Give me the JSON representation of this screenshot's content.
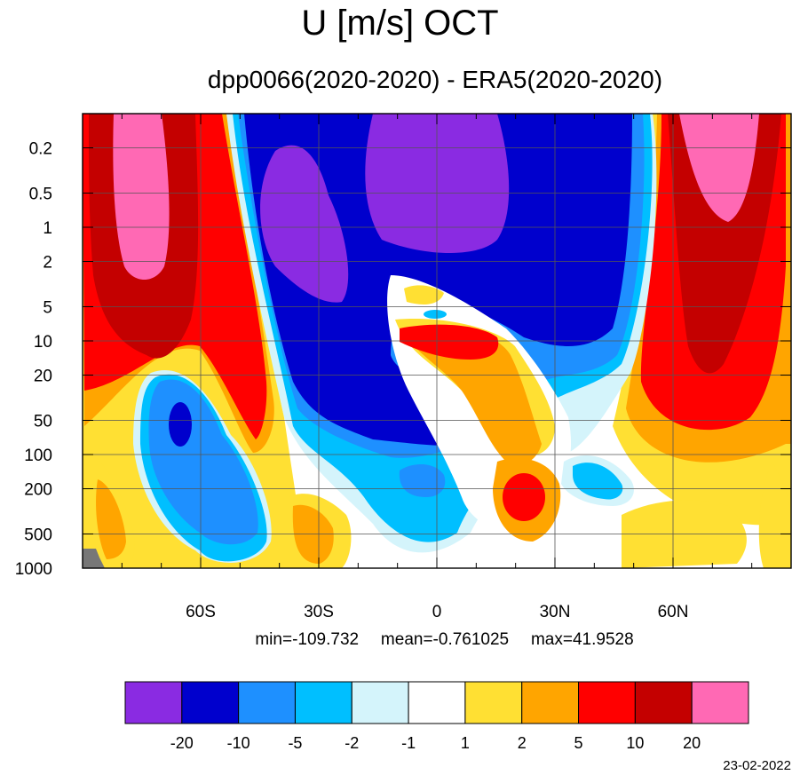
{
  "title": "U [m/s] OCT",
  "subtitle": "dpp0066(2020-2020) - ERA5(2020-2020)",
  "stats": {
    "min": "min=-109.732",
    "mean": "mean=-0.761025",
    "max": "max=41.9528"
  },
  "date": "23-02-2022",
  "chart_data": {
    "type": "heatmap",
    "title": "U [m/s] OCT",
    "subtitle": "dpp0066(2020-2020) - ERA5(2020-2020)",
    "x_axis": {
      "ticks": [
        -60,
        -30,
        0,
        30,
        60
      ],
      "tick_labels": [
        "60S",
        "30S",
        "0",
        "30N",
        "60N"
      ],
      "range": [
        -90,
        90
      ]
    },
    "y_axis": {
      "scale": "log",
      "ticks": [
        0.2,
        0.5,
        1,
        2,
        5,
        10,
        20,
        50,
        100,
        200,
        500,
        1000
      ],
      "tick_labels": [
        "0.2",
        "0.5",
        "1",
        "2",
        "5",
        "10",
        "20",
        "50",
        "100",
        "200",
        "500",
        "1000"
      ],
      "range": [
        1000,
        0.1
      ]
    },
    "grid": true,
    "colorbar": {
      "labels": [
        "-20",
        "-10",
        "-5",
        "-2",
        "-1",
        "1",
        "2",
        "5",
        "10",
        "20"
      ],
      "colors": [
        "#8a2be2",
        "#0000cd",
        "#1e90ff",
        "#00bfff",
        "#d4f4fb",
        "#ffffff",
        "#ffe033",
        "#ffa500",
        "#ff0000",
        "#c40000",
        "#ff69b4"
      ]
    },
    "features": [
      {
        "region": "southern polar jet",
        "lat": -68,
        "pressure": [
          0.3,
          2
        ],
        "sign": "positive",
        "level": ">20"
      },
      {
        "region": "northern polar jet",
        "lat": 75,
        "pressure": [
          0.2,
          1
        ],
        "sign": "positive",
        "level": ">20"
      },
      {
        "region": "tropical upper stratosphere",
        "lat": 0,
        "pressure": [
          0.2,
          1
        ],
        "sign": "negative",
        "level": "<-20"
      },
      {
        "region": "southern subtropics stratosphere",
        "lat": -35,
        "pressure": [
          0.5,
          3
        ],
        "sign": "negative",
        "level": "<-20"
      },
      {
        "region": "equatorial lower stratosphere",
        "lat": 10,
        "pressure": [
          8,
          12
        ],
        "sign": "positive",
        "level": "5-10"
      },
      {
        "region": "northern subtropical troposphere",
        "lat": 25,
        "pressure": [
          200,
          300
        ],
        "sign": "positive",
        "level": "5-10"
      },
      {
        "region": "southern midlatitude",
        "lat": -63,
        "pressure": [
          50,
          80
        ],
        "sign": "negative",
        "level": "<-10"
      }
    ]
  }
}
